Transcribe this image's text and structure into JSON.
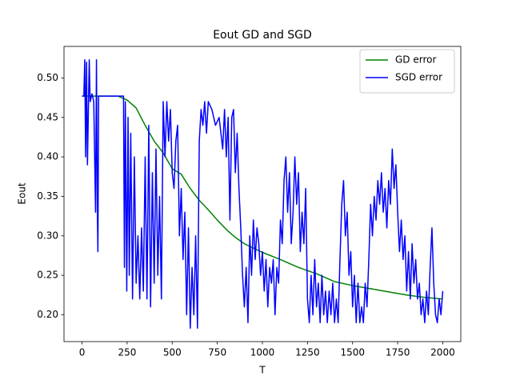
{
  "chart_data": {
    "type": "line",
    "title": "Eout GD and SGD",
    "xlabel": "T",
    "ylabel": "Eout",
    "xlim": [
      -100,
      2100
    ],
    "ylim": [
      0.166,
      0.54
    ],
    "xticks": [
      0,
      250,
      500,
      750,
      1000,
      1250,
      1500,
      1750,
      2000
    ],
    "yticks": [
      {
        "value": 0.2,
        "label": "0.20"
      },
      {
        "value": 0.25,
        "label": "0.25"
      },
      {
        "value": 0.3,
        "label": "0.30"
      },
      {
        "value": 0.35,
        "label": "0.35"
      },
      {
        "value": 0.4,
        "label": "0.40"
      },
      {
        "value": 0.45,
        "label": "0.45"
      },
      {
        "value": 0.5,
        "label": "0.50"
      }
    ],
    "legend": "upper right",
    "series": [
      {
        "name": "GD error",
        "color": "#008000",
        "x": [
          0,
          100,
          200,
          250,
          300,
          350,
          400,
          450,
          500,
          550,
          600,
          650,
          700,
          750,
          800,
          850,
          900,
          1000,
          1100,
          1200,
          1300,
          1400,
          1500,
          1600,
          1700,
          1800,
          1900,
          2000
        ],
        "values": [
          0.477,
          0.477,
          0.477,
          0.472,
          0.462,
          0.44,
          0.42,
          0.405,
          0.385,
          0.378,
          0.36,
          0.345,
          0.333,
          0.32,
          0.308,
          0.298,
          0.29,
          0.279,
          0.27,
          0.26,
          0.252,
          0.242,
          0.237,
          0.233,
          0.229,
          0.225,
          0.222,
          0.22
        ]
      },
      {
        "name": "SGD error",
        "color": "#0000ff",
        "x": [
          0,
          10,
          15,
          20,
          25,
          30,
          40,
          45,
          55,
          65,
          75,
          80,
          85,
          88,
          92,
          120,
          230,
          235,
          240,
          248,
          255,
          262,
          270,
          280,
          290,
          300,
          310,
          320,
          330,
          340,
          350,
          360,
          370,
          380,
          390,
          400,
          410,
          420,
          430,
          440,
          450,
          460,
          470,
          480,
          490,
          500,
          510,
          520,
          530,
          540,
          550,
          560,
          570,
          580,
          590,
          600,
          610,
          620,
          630,
          640,
          650,
          660,
          670,
          680,
          690,
          700,
          720,
          740,
          760,
          780,
          790,
          800,
          810,
          820,
          830,
          840,
          850,
          860,
          870,
          880,
          890,
          900,
          910,
          920,
          930,
          940,
          950,
          960,
          970,
          980,
          990,
          1000,
          1010,
          1020,
          1030,
          1040,
          1050,
          1060,
          1070,
          1080,
          1090,
          1100,
          1110,
          1120,
          1130,
          1140,
          1150,
          1160,
          1170,
          1180,
          1190,
          1200,
          1210,
          1220,
          1230,
          1240,
          1250,
          1260,
          1270,
          1280,
          1290,
          1300,
          1310,
          1320,
          1330,
          1340,
          1350,
          1360,
          1370,
          1380,
          1390,
          1400,
          1410,
          1420,
          1430,
          1440,
          1450,
          1460,
          1470,
          1480,
          1490,
          1500,
          1510,
          1520,
          1530,
          1540,
          1550,
          1560,
          1570,
          1580,
          1590,
          1600,
          1610,
          1620,
          1630,
          1640,
          1650,
          1660,
          1670,
          1680,
          1690,
          1700,
          1710,
          1720,
          1730,
          1740,
          1750,
          1760,
          1770,
          1780,
          1790,
          1800,
          1810,
          1820,
          1830,
          1840,
          1850,
          1860,
          1870,
          1880,
          1890,
          1900,
          1910,
          1920,
          1930,
          1940,
          1950,
          1960,
          1970,
          1980,
          1990,
          2000
        ],
        "values": [
          0.477,
          0.477,
          0.523,
          0.4,
          0.52,
          0.39,
          0.523,
          0.47,
          0.48,
          0.47,
          0.33,
          0.523,
          0.33,
          0.28,
          0.477,
          0.477,
          0.477,
          0.26,
          0.47,
          0.23,
          0.45,
          0.25,
          0.43,
          0.22,
          0.4,
          0.24,
          0.3,
          0.22,
          0.31,
          0.23,
          0.4,
          0.22,
          0.44,
          0.21,
          0.38,
          0.24,
          0.41,
          0.25,
          0.35,
          0.22,
          0.47,
          0.4,
          0.47,
          0.42,
          0.46,
          0.38,
          0.36,
          0.42,
          0.44,
          0.3,
          0.36,
          0.27,
          0.33,
          0.2,
          0.31,
          0.183,
          0.26,
          0.2,
          0.3,
          0.183,
          0.42,
          0.46,
          0.44,
          0.47,
          0.43,
          0.47,
          0.46,
          0.44,
          0.45,
          0.41,
          0.46,
          0.4,
          0.45,
          0.32,
          0.45,
          0.46,
          0.38,
          0.43,
          0.36,
          0.31,
          0.25,
          0.21,
          0.26,
          0.19,
          0.3,
          0.25,
          0.32,
          0.27,
          0.31,
          0.29,
          0.25,
          0.28,
          0.23,
          0.27,
          0.21,
          0.26,
          0.24,
          0.27,
          0.2,
          0.26,
          0.24,
          0.32,
          0.29,
          0.37,
          0.4,
          0.33,
          0.38,
          0.29,
          0.33,
          0.4,
          0.34,
          0.38,
          0.28,
          0.33,
          0.29,
          0.36,
          0.22,
          0.19,
          0.25,
          0.2,
          0.27,
          0.21,
          0.24,
          0.19,
          0.25,
          0.2,
          0.23,
          0.19,
          0.23,
          0.2,
          0.24,
          0.19,
          0.22,
          0.19,
          0.27,
          0.34,
          0.37,
          0.3,
          0.33,
          0.25,
          0.28,
          0.21,
          0.25,
          0.19,
          0.24,
          0.19,
          0.21,
          0.19,
          0.24,
          0.21,
          0.27,
          0.34,
          0.3,
          0.35,
          0.32,
          0.37,
          0.34,
          0.38,
          0.33,
          0.36,
          0.31,
          0.37,
          0.34,
          0.41,
          0.36,
          0.39,
          0.33,
          0.28,
          0.32,
          0.27,
          0.3,
          0.23,
          0.28,
          0.22,
          0.29,
          0.24,
          0.27,
          0.22,
          0.24,
          0.2,
          0.22,
          0.19,
          0.23,
          0.2,
          0.26,
          0.31,
          0.24,
          0.2,
          0.19,
          0.22,
          0.2,
          0.23
        ]
      }
    ]
  }
}
